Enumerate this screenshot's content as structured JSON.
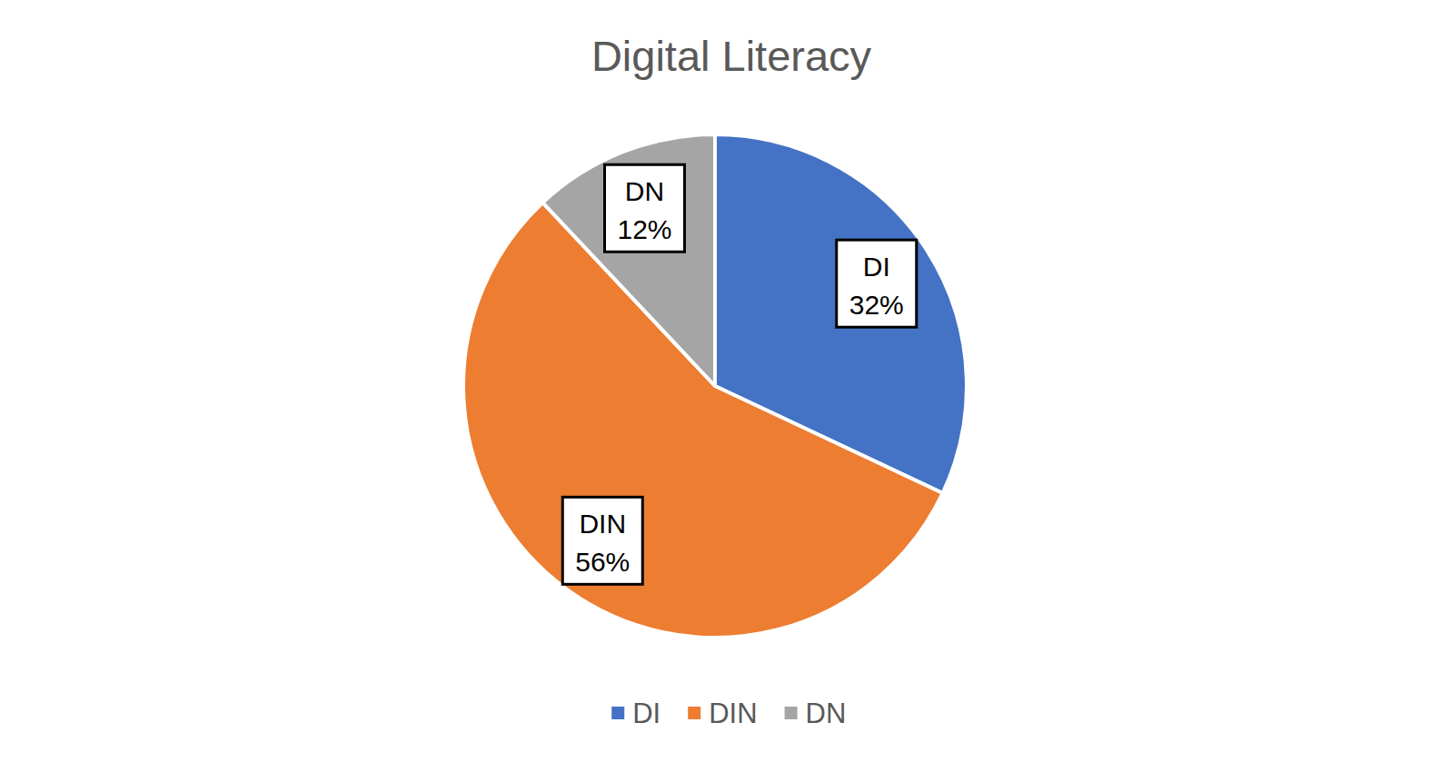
{
  "chart_data": {
    "type": "pie",
    "title": "Digital Literacy",
    "categories": [
      "DI",
      "DIN",
      "DN"
    ],
    "values": [
      32,
      56,
      12
    ],
    "value_labels": [
      "32%",
      "56%",
      "12%"
    ],
    "colors": [
      "#4472c4",
      "#ed7d31",
      "#a5a5a5"
    ],
    "data_labels": true,
    "legend": "bottom"
  }
}
